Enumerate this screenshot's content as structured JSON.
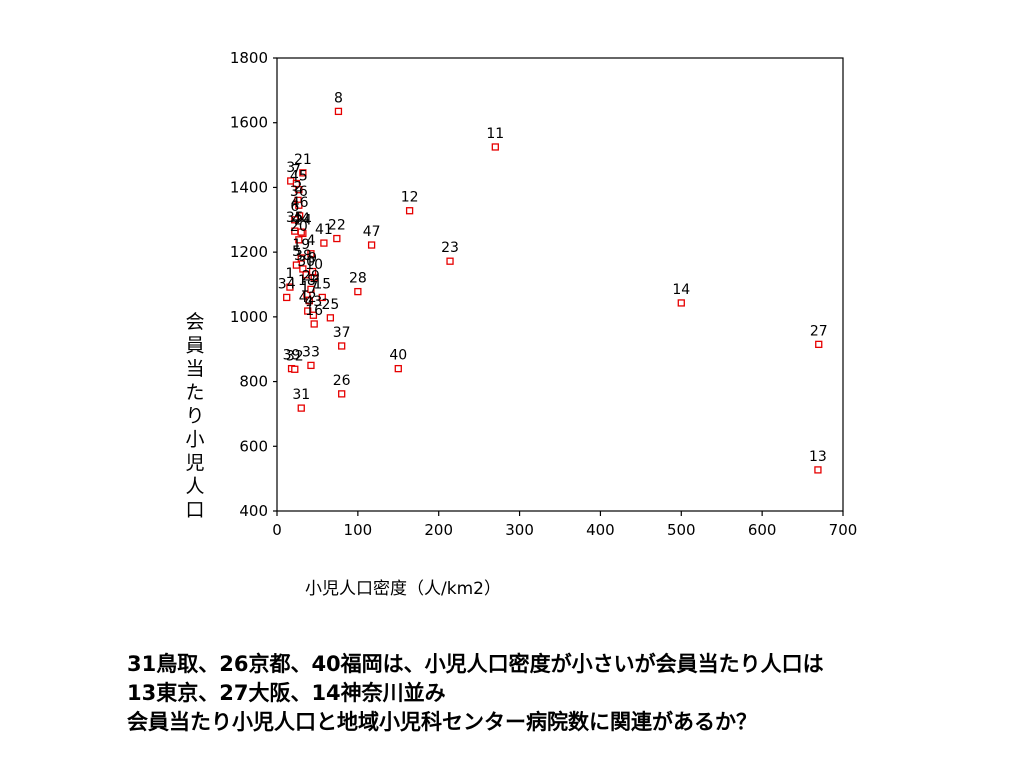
{
  "chart_data": {
    "type": "scatter",
    "title": "",
    "xlabel": "小児人口密度（人/km2）",
    "ylabel": "会員当たり小児人口",
    "xlim": [
      0,
      700
    ],
    "ylim": [
      400,
      1800
    ],
    "xticks": [
      "0",
      "100",
      "200",
      "300",
      "400",
      "500",
      "600",
      "700"
    ],
    "yticks": [
      "400",
      "600",
      "800",
      "1000",
      "1200",
      "1400",
      "1600",
      "1800"
    ],
    "grid": false,
    "legend": "none",
    "marker_color": "#e60000",
    "points": [
      {
        "label": "8",
        "x": 76,
        "y": 1635
      },
      {
        "label": "11",
        "x": 270,
        "y": 1525
      },
      {
        "label": "21",
        "x": 32,
        "y": 1445
      },
      {
        "label": "3",
        "x": 17,
        "y": 1420
      },
      {
        "label": "7",
        "x": 24,
        "y": 1412
      },
      {
        "label": "45",
        "x": 27,
        "y": 1393
      },
      {
        "label": "2",
        "x": 26,
        "y": 1360
      },
      {
        "label": "36",
        "x": 27,
        "y": 1345
      },
      {
        "label": "12",
        "x": 164,
        "y": 1328
      },
      {
        "label": "46",
        "x": 28,
        "y": 1312
      },
      {
        "label": "6",
        "x": 22,
        "y": 1300
      },
      {
        "label": "41",
        "x": 58,
        "y": 1228
      },
      {
        "label": "22",
        "x": 74,
        "y": 1242
      },
      {
        "label": "47",
        "x": 117,
        "y": 1222
      },
      {
        "label": "35",
        "x": 22,
        "y": 1265
      },
      {
        "label": "24",
        "x": 32,
        "y": 1258
      },
      {
        "label": "44",
        "x": 30,
        "y": 1262
      },
      {
        "label": "20",
        "x": 27,
        "y": 1238
      },
      {
        "label": "4",
        "x": 42,
        "y": 1195
      },
      {
        "label": "23",
        "x": 214,
        "y": 1172
      },
      {
        "label": "19",
        "x": 30,
        "y": 1182
      },
      {
        "label": "5",
        "x": 24,
        "y": 1160
      },
      {
        "label": "9",
        "x": 44,
        "y": 1140
      },
      {
        "label": "38",
        "x": 32,
        "y": 1148
      },
      {
        "label": "30",
        "x": 36,
        "y": 1130
      },
      {
        "label": "10",
        "x": 46,
        "y": 1120
      },
      {
        "label": "28",
        "x": 100,
        "y": 1078
      },
      {
        "label": "1",
        "x": 16,
        "y": 1092
      },
      {
        "label": "14",
        "x": 500,
        "y": 1043
      },
      {
        "label": "18",
        "x": 37,
        "y": 1070
      },
      {
        "label": "29",
        "x": 42,
        "y": 1085
      },
      {
        "label": "15",
        "x": 56,
        "y": 1060
      },
      {
        "label": "17",
        "x": 40,
        "y": 1050
      },
      {
        "label": "25",
        "x": 66,
        "y": 997
      },
      {
        "label": "42",
        "x": 38,
        "y": 1018
      },
      {
        "label": "43",
        "x": 45,
        "y": 1005
      },
      {
        "label": "34",
        "x": 12,
        "y": 1060
      },
      {
        "label": "16",
        "x": 46,
        "y": 978
      },
      {
        "label": "37",
        "x": 80,
        "y": 910
      },
      {
        "label": "27",
        "x": 670,
        "y": 915
      },
      {
        "label": "39",
        "x": 18,
        "y": 840
      },
      {
        "label": "32",
        "x": 22,
        "y": 838
      },
      {
        "label": "33",
        "x": 42,
        "y": 850
      },
      {
        "label": "40",
        "x": 150,
        "y": 840
      },
      {
        "label": "26",
        "x": 80,
        "y": 762
      },
      {
        "label": "31",
        "x": 30,
        "y": 718
      },
      {
        "label": "13",
        "x": 669,
        "y": 527
      }
    ]
  },
  "caption": {
    "lines": [
      "31鳥取、26京都、40福岡は、小児人口密度が小さいが会員当たり人口は",
      "13東京、27大阪、14神奈川並み",
      "会員当たり小児人口と地域小児科センター病院数に関連があるか？"
    ]
  }
}
